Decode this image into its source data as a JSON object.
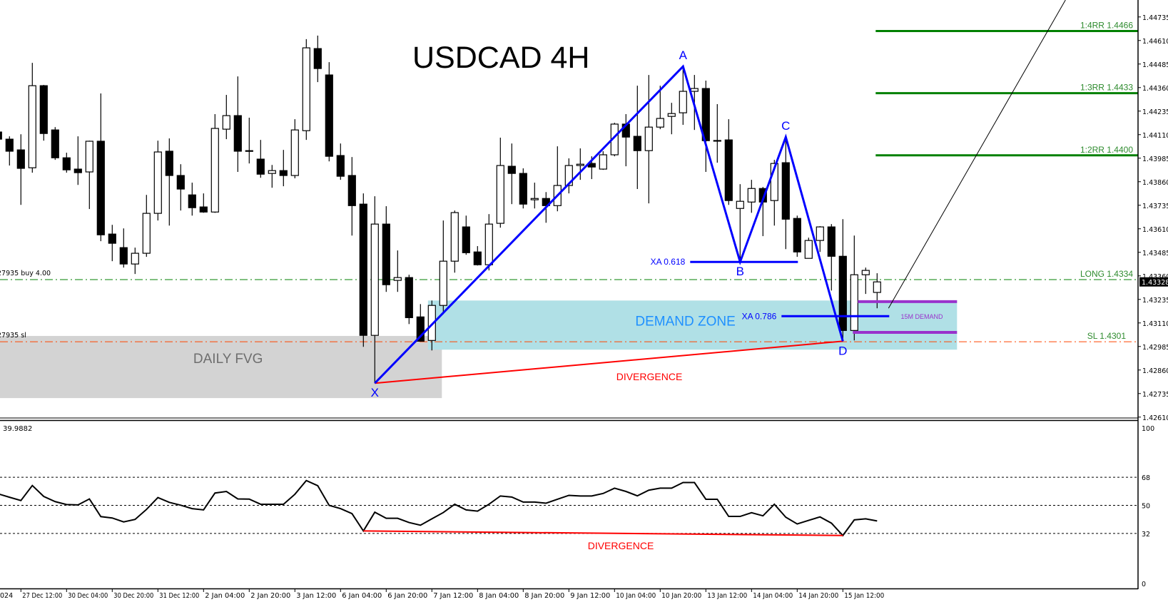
{
  "chart_data": {
    "type": "candlestick",
    "title": "USDCAD 4H",
    "symbol": "USDCAD",
    "timeframe": "4H",
    "ylim": [
      1.4261,
      1.44825
    ],
    "y_tick_labels": [
      "1.44735",
      "1.44610",
      "1.44485",
      "1.44360",
      "1.44235",
      "1.44110",
      "1.43985",
      "1.43860",
      "1.43735",
      "1.43610",
      "1.43485",
      "1.43360",
      "1.43235",
      "1.43110",
      "1.42985",
      "1.42860",
      "1.42735",
      "1.42610"
    ],
    "current_price_label": "1.43328",
    "x_first_label_fragment": "024",
    "x_tick_labels": [
      "27 Dec 12:00",
      "30 Dec 04:00",
      "30 Dec 20:00",
      "31 Dec 12:00",
      "2 Jan 04:00",
      "2 Jan 20:00",
      "3 Jan 12:00",
      "6 Jan 04:00",
      "6 Jan 20:00",
      "7 Jan 12:00",
      "8 Jan 04:00",
      "8 Jan 20:00",
      "9 Jan 12:00",
      "10 Jan 04:00",
      "10 Jan 20:00",
      "13 Jan 12:00",
      "14 Jan 04:00",
      "14 Jan 20:00",
      "15 Jan 12:00"
    ],
    "x_tick_first_candle": 2,
    "x_tick_every_candles": 4,
    "ohlc_fields": [
      "open",
      "high",
      "low",
      "close"
    ],
    "ohlc": [
      [
        1.44124,
        1.44143,
        1.44067,
        1.44086
      ],
      [
        1.44086,
        1.44101,
        1.43946,
        1.44022
      ],
      [
        1.44029,
        1.44112,
        1.43737,
        1.43931
      ],
      [
        1.43934,
        1.44491,
        1.43908,
        1.4437
      ],
      [
        1.4437,
        1.44374,
        1.44078,
        1.44116
      ],
      [
        1.44135,
        1.4415,
        1.43976,
        1.43987
      ],
      [
        1.43987,
        1.44014,
        1.43908,
        1.43923
      ],
      [
        1.43927,
        1.44101,
        1.43843,
        1.43908
      ],
      [
        1.43912,
        1.44078,
        1.43715,
        1.44075
      ],
      [
        1.44075,
        1.44329,
        1.43544,
        1.43578
      ],
      [
        1.43582,
        1.43631,
        1.43438,
        1.43533
      ],
      [
        1.4351,
        1.43612,
        1.43404,
        1.43423
      ],
      [
        1.43423,
        1.4351,
        1.4337,
        1.4348
      ],
      [
        1.4348,
        1.4379,
        1.43461,
        1.43692
      ],
      [
        1.43692,
        1.44078,
        1.43654,
        1.44018
      ],
      [
        1.44022,
        1.4409,
        1.43627,
        1.43893
      ],
      [
        1.43893,
        1.43953,
        1.43707,
        1.43821
      ],
      [
        1.4379,
        1.43855,
        1.4368,
        1.43722
      ],
      [
        1.43726,
        1.43798,
        1.43695,
        1.43699
      ],
      [
        1.43699,
        1.44219,
        1.43695,
        1.44143
      ],
      [
        1.44139,
        1.44321,
        1.44086,
        1.44211
      ],
      [
        1.44211,
        1.44419,
        1.43912,
        1.44022
      ],
      [
        1.44025,
        1.442,
        1.43957,
        1.44023
      ],
      [
        1.4398,
        1.44082,
        1.43881,
        1.439
      ],
      [
        1.43904,
        1.43949,
        1.43828,
        1.43919
      ],
      [
        1.43919,
        1.44029,
        1.43836,
        1.43893
      ],
      [
        1.43893,
        1.44192,
        1.43878,
        1.44135
      ],
      [
        1.44131,
        1.44617,
        1.44082,
        1.44571
      ],
      [
        1.44567,
        1.44636,
        1.44389,
        1.44461
      ],
      [
        1.44427,
        1.44495,
        1.43968,
        1.43995
      ],
      [
        1.43999,
        1.44063,
        1.4387,
        1.43889
      ],
      [
        1.43893,
        1.43991,
        1.43574,
        1.43733
      ],
      [
        1.43741,
        1.43798,
        1.42983,
        1.43044
      ],
      [
        1.43044,
        1.43783,
        1.4279,
        1.43635
      ],
      [
        1.43635,
        1.4373,
        1.43275,
        1.43313
      ],
      [
        1.43336,
        1.43495,
        1.43275,
        1.43351
      ],
      [
        1.43351,
        1.43366,
        1.43104,
        1.43138
      ],
      [
        1.43142,
        1.4321,
        1.43013,
        1.43013
      ],
      [
        1.43017,
        1.43229,
        1.42964,
        1.43203
      ],
      [
        1.43203,
        1.43654,
        1.43157,
        1.43438
      ],
      [
        1.43438,
        1.43707,
        1.43377,
        1.43696
      ],
      [
        1.4362,
        1.4368,
        1.43472,
        1.43483
      ],
      [
        1.43487,
        1.43518,
        1.43415,
        1.43419
      ],
      [
        1.43419,
        1.43688,
        1.43389,
        1.43635
      ],
      [
        1.43639,
        1.44094,
        1.43616,
        1.43946
      ],
      [
        1.43942,
        1.44063,
        1.43741,
        1.43904
      ],
      [
        1.43904,
        1.43931,
        1.43718,
        1.43741
      ],
      [
        1.43764,
        1.43855,
        1.43718,
        1.43771
      ],
      [
        1.43771,
        1.43805,
        1.43642,
        1.43733
      ],
      [
        1.43733,
        1.44048,
        1.43703,
        1.4384
      ],
      [
        1.4384,
        1.43984,
        1.43798,
        1.43946
      ],
      [
        1.43946,
        1.44037,
        1.4387,
        1.43953
      ],
      [
        1.43957,
        1.43995,
        1.43874,
        1.43938
      ],
      [
        1.43927,
        1.44022,
        1.43923,
        1.44003
      ],
      [
        1.44003,
        1.44173,
        1.43995,
        1.44166
      ],
      [
        1.44166,
        1.44219,
        1.43942,
        1.44097
      ],
      [
        1.44101,
        1.4437,
        1.43821,
        1.44025
      ],
      [
        1.44025,
        1.44427,
        1.43745,
        1.4415
      ],
      [
        1.4415,
        1.4437,
        1.44139,
        1.44196
      ],
      [
        1.44207,
        1.44279,
        1.44112,
        1.44222
      ],
      [
        1.44226,
        1.44472,
        1.44162,
        1.4434
      ],
      [
        1.4434,
        1.44427,
        1.44135,
        1.44355
      ],
      [
        1.44355,
        1.44397,
        1.43912,
        1.44078
      ],
      [
        1.44078,
        1.44272,
        1.43961,
        1.44079
      ],
      [
        1.44082,
        1.44192,
        1.43737,
        1.4376
      ],
      [
        1.43718,
        1.43847,
        1.43434,
        1.43756
      ],
      [
        1.43752,
        1.4387,
        1.43695,
        1.43824
      ],
      [
        1.43824,
        1.43832,
        1.43571,
        1.43752
      ],
      [
        1.4376,
        1.43976,
        1.43627,
        1.43957
      ],
      [
        1.43961,
        1.44097,
        1.43502,
        1.43661
      ],
      [
        1.43665,
        1.4368,
        1.43461,
        1.43487
      ],
      [
        1.43453,
        1.43563,
        1.43453,
        1.43548
      ],
      [
        1.43548,
        1.43624,
        1.43487,
        1.4362
      ],
      [
        1.4362,
        1.43635,
        1.43282,
        1.43464
      ],
      [
        1.43464,
        1.43661,
        1.43013,
        1.4307
      ],
      [
        1.4307,
        1.43574,
        1.43017,
        1.43366
      ],
      [
        1.43366,
        1.43404,
        1.43264,
        1.43389
      ],
      [
        1.43272,
        1.43374,
        1.43188,
        1.43328
      ]
    ],
    "pattern": {
      "points": [
        {
          "label": "X",
          "candle": 33,
          "price": 1.4279
        },
        {
          "label": "A",
          "candle": 60,
          "price": 1.44472
        },
        {
          "label": "B",
          "candle": 65,
          "price": 1.43434
        },
        {
          "label": "C",
          "candle": 69,
          "price": 1.44097
        },
        {
          "label": "D",
          "candle": 74,
          "price": 1.43013
        }
      ],
      "color": "#0000ff",
      "retracements": [
        {
          "label": "XA 0.618",
          "price": 1.43434,
          "from_candle": 61,
          "to_candle": 70
        },
        {
          "label": "XA 0.786",
          "price": 1.43146,
          "from_candle": 69,
          "to_candle": 78
        }
      ]
    },
    "levels": [
      {
        "label": "1:4RR 1.4466",
        "price": 1.4466,
        "style": "solid",
        "color": "#008000",
        "from_candle": 77
      },
      {
        "label": "1:3RR 1.4433",
        "price": 1.4433,
        "style": "solid",
        "color": "#008000",
        "from_candle": 77
      },
      {
        "label": "1:2RR 1.4400",
        "price": 1.44,
        "style": "solid",
        "color": "#008000",
        "from_candle": 77
      },
      {
        "label": "LONG 1.4334",
        "price": 1.4334,
        "style": "dashdot",
        "color": "#008000",
        "from_candle": 0,
        "left_label": "27935 buy 4.00"
      },
      {
        "label": "SL 1.4301",
        "price": 1.4301,
        "style": "dashdot",
        "color": "#ff4500",
        "from_candle": 0,
        "left_label": "27935 sl"
      }
    ],
    "zones": [
      {
        "label": "DAILY FVG",
        "price_top": 1.43041,
        "price_bottom": 1.42711,
        "from_candle": 0,
        "to_candle": 39,
        "fill": "#d3d3d3",
        "text_color": "#6e6e6e"
      },
      {
        "label": "DEMAND ZONE",
        "price_top": 1.43229,
        "price_bottom": 1.42968,
        "from_candle": 38,
        "to_candle": 84,
        "fill": "#b0e0e6",
        "text_color": "#1e90ff"
      }
    ],
    "m15_demand": {
      "label": "15M DEMAND",
      "price_top": 1.43223,
      "price_bottom": 1.4306,
      "from_candle": 75,
      "to_candle": 84,
      "color": "#9932cc"
    },
    "divergence_price": {
      "label": "DIVERGENCE",
      "from": {
        "candle": 33,
        "price": 1.4279
      },
      "to": {
        "candle": 74,
        "price": 1.43013
      },
      "color": "#ff0000"
    },
    "projection": {
      "from": {
        "candle": 78,
        "price": 1.43188
      },
      "to": {
        "candle": 93.5,
        "price": 1.44825
      }
    },
    "indicator": {
      "value_label": "39.9882",
      "ylim": [
        0,
        100
      ],
      "axis_labels": [
        "100",
        "68",
        "50",
        "32",
        "0"
      ],
      "levels": [
        68,
        50,
        32
      ],
      "values": [
        57.4,
        55.2,
        53.1,
        62.7,
        55.7,
        52.4,
        50.5,
        50.3,
        54.1,
        42.8,
        41.9,
        39.4,
        41.0,
        47.4,
        55.0,
        51.9,
        50.1,
        47.9,
        47.1,
        57.9,
        58.9,
        54.1,
        54.0,
        50.7,
        50.7,
        50.7,
        57.1,
        65.9,
        62.6,
        50.0,
        47.9,
        44.7,
        33.6,
        45.6,
        41.7,
        41.7,
        39.0,
        37.3,
        41.4,
        45.4,
        50.7,
        47.1,
        46.3,
        50.7,
        56.0,
        55.3,
        52.1,
        52.1,
        51.4,
        53.9,
        56.4,
        56.0,
        56.0,
        57.6,
        61.0,
        58.9,
        56.1,
        59.7,
        61.0,
        61.0,
        64.6,
        64.6,
        53.9,
        53.9,
        42.9,
        42.9,
        45.3,
        43.3,
        50.7,
        42.4,
        38.1,
        40.4,
        42.6,
        38.6,
        30.7,
        40.7,
        41.4,
        40.0
      ],
      "divergence": {
        "label": "DIVERGENCE",
        "from": {
          "candle": 32,
          "value": 33.6
        },
        "to": {
          "candle": 74,
          "value": 30.7
        },
        "color": "#ff0000"
      }
    }
  }
}
